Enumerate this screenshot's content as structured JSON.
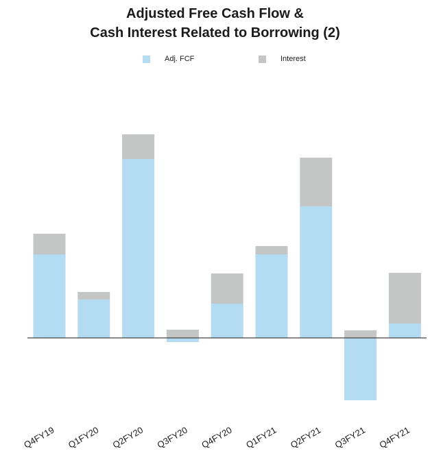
{
  "chart_data": {
    "type": "bar",
    "stacked": true,
    "title_line1": "Adjusted Free Cash Flow &",
    "title_line2": "Cash Interest Related to Borrowing (2)",
    "xlabel": "",
    "ylabel": "",
    "categories": [
      "Q4FY19",
      "Q1FY20",
      "Q2FY20",
      "Q3FY20",
      "Q4FY20",
      "Q1FY21",
      "Q2FY21",
      "Q3FY21",
      "Q4FY21"
    ],
    "series": [
      {
        "name": "Adj. FCF",
        "color": "#b3dbf1",
        "values": [
          122,
          56,
          261,
          -6,
          50,
          122,
          192,
          -91,
          21
        ]
      },
      {
        "name": "Interest",
        "color": "#c4c6c6",
        "values": [
          30,
          11,
          36,
          12,
          44,
          12,
          71,
          11,
          74
        ]
      }
    ],
    "ylim": [
      -110,
      320
    ],
    "grid": false,
    "legend_position": "top-center",
    "zero_line_color": "#444444",
    "tick_label_rotation": -30
  }
}
